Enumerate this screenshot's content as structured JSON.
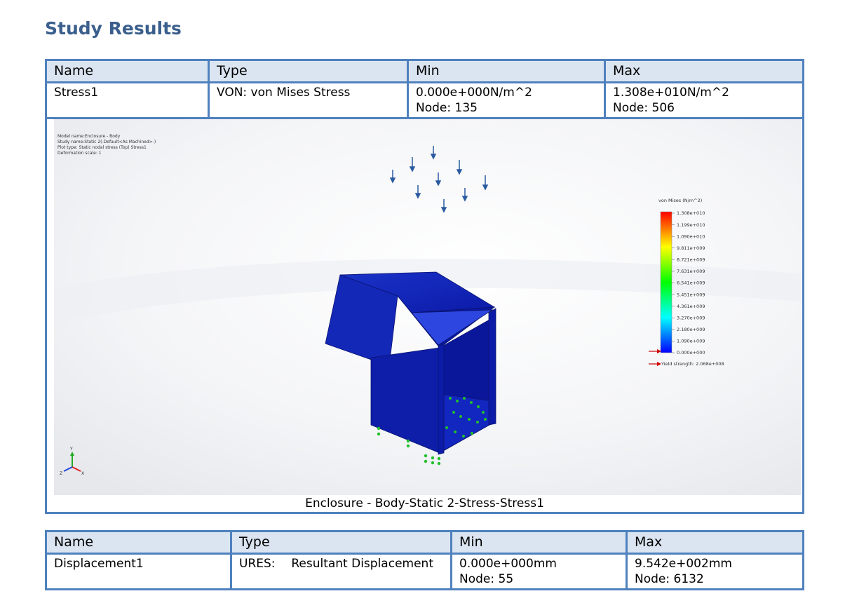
{
  "heading": "Study Results",
  "headers": {
    "name": "Name",
    "type": "Type",
    "min": "Min",
    "max": "Max"
  },
  "stress": {
    "name": "Stress1",
    "type": "VON: von Mises Stress",
    "min_value": "0.000e+000N/m^2",
    "min_node": "Node: 135",
    "max_value": "1.308e+010N/m^2",
    "max_node": "Node: 506",
    "caption": "Enclosure - Body-Static 2-Stress-Stress1"
  },
  "plot_info": {
    "model_name": "Model name:Enclosure - Body",
    "study_name": "Study name:Static 2(-Default<As Machined>-)",
    "plot_type": "Plot type: Static nodal stress (Top) Stress1",
    "deformation": "Deformation scale: 1"
  },
  "legend": {
    "title": "von Mises (N/m^2)",
    "ticks": [
      "1.308e+010",
      "1.199e+010",
      "1.090e+010",
      "9.811e+009",
      "8.721e+009",
      "7.631e+009",
      "6.541e+009",
      "5.451e+009",
      "4.361e+009",
      "3.270e+009",
      "2.180e+009",
      "1.090e+009",
      "0.000e+000"
    ],
    "yield": "Yield strength: 2.068e+008",
    "colors": [
      "#ff0000",
      "#ffff00",
      "#00ff00",
      "#00ffff",
      "#0000ff"
    ]
  },
  "triad": {
    "x": "X",
    "y": "Y",
    "z": "Z"
  },
  "displacement": {
    "name": "Displacement1",
    "type_code": "URES:",
    "type_desc": "Resultant Displacement",
    "min_value": "0.000e+000mm",
    "min_node": "Node: 55",
    "max_value": "9.542e+002mm",
    "max_node": "Node: 6132"
  }
}
